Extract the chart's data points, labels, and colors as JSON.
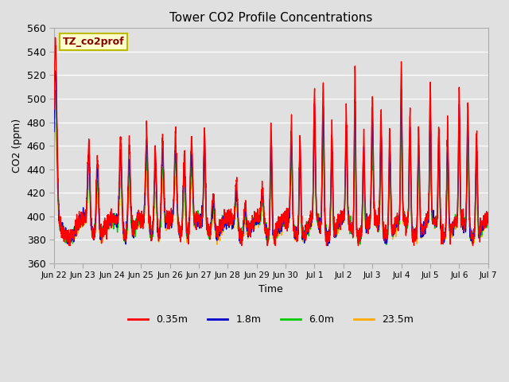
{
  "title": "Tower CO2 Profile Concentrations",
  "xlabel": "Time",
  "ylabel": "CO2 (ppm)",
  "ylim": [
    360,
    560
  ],
  "yticks": [
    360,
    380,
    400,
    420,
    440,
    460,
    480,
    500,
    520,
    540,
    560
  ],
  "bg_color": "#e0e0e0",
  "plot_bg_color": "#e0e0e0",
  "legend_label": "TZ_co2prof",
  "series_labels": [
    "0.35m",
    "1.8m",
    "6.0m",
    "23.5m"
  ],
  "series_colors": [
    "#ff0000",
    "#0000cc",
    "#00cc00",
    "#ffaa00"
  ],
  "line_width": 1.0,
  "xtick_labels": [
    "Jun 22",
    "Jun 23",
    "Jun 24",
    "Jun 25",
    "Jun 26",
    "Jun 27",
    "Jun 28",
    "Jun 29",
    "Jun 30",
    "Jul 1",
    "Jul 2",
    "Jul 3",
    "Jul 4",
    "Jul 5",
    "Jul 6",
    "Jul 7"
  ],
  "num_days": 15,
  "base_co2": 390,
  "noise_scale": 5
}
